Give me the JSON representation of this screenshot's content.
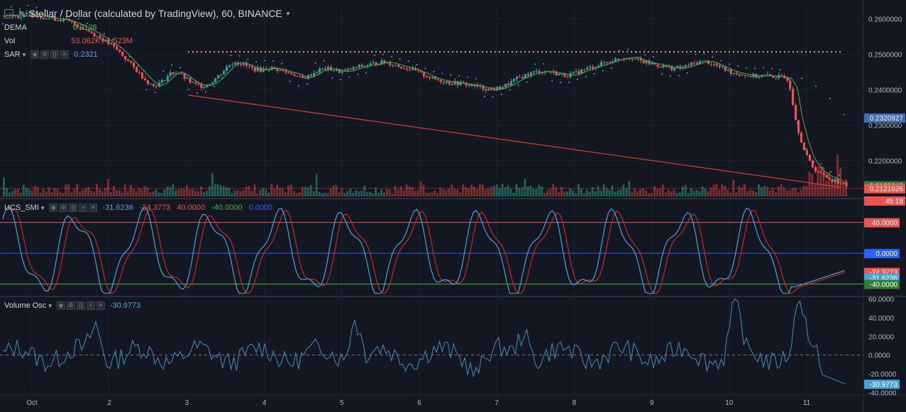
{
  "header": {
    "title": "Stellar / Dollar (calculated by TradingView), 60, BINANCE",
    "menu_caret": "▾"
  },
  "indicators": {
    "dema": {
      "name": "DEMA",
      "value": "0.2138"
    },
    "vol": {
      "name": "Vol",
      "value1": "53.062K",
      "value2": "1.523M"
    },
    "sar": {
      "name": "SAR",
      "value": "0.2321"
    },
    "smi": {
      "name": "UCS_SMI",
      "values": [
        "-31.6236",
        "-24.3773",
        "40.0000",
        "-40.0000",
        "0.0000"
      ],
      "colors": [
        "#4aa3d8",
        "#ef5350",
        "#ef5350",
        "#4caf50",
        "#2962ff"
      ]
    },
    "vosc": {
      "name": "Volume Osc",
      "value": "-30.9773"
    }
  },
  "colors": {
    "background": "#131722",
    "up": "#26a69a",
    "down": "#ef5350",
    "dema_line": "#4caf50",
    "sar_dots": "#5d9cec",
    "trendline": "#e53935",
    "resistance": "#ff9800",
    "smi_line": "#4aa3d8",
    "smi_signal": "#c62828",
    "upper_level": "#ef5350",
    "mid_level": "#2962ff",
    "lower_level": "#4caf50"
  },
  "chart_data": [
    {
      "type": "candlestick",
      "pane": "price",
      "yticks": [
        "0.2600000",
        "0.2500000",
        "0.2400000",
        "0.2300000",
        "0.2200000"
      ],
      "ylim": [
        0.2095,
        0.2645
      ],
      "xticks": [
        "Oct",
        "2",
        "3",
        "4",
        "5",
        "6",
        "7",
        "8",
        "9",
        "10",
        "11"
      ],
      "price_labels": [
        {
          "text": "0.2320927",
          "value": 0.2320927,
          "color": "#3d6eb4"
        },
        {
          "text": "0.2130043",
          "value": 0.2130043,
          "color": "#2e7d32"
        },
        {
          "text": "0.2121626",
          "value": 0.2121626,
          "color": "#ef5350"
        },
        {
          "text": "45:18",
          "value": 0.2087,
          "color": "#ef5350"
        }
      ],
      "resistance_level": 0.2507,
      "trendline": {
        "from": [
          "Oct 3",
          0.2385
        ],
        "to": [
          "Oct 11",
          0.2125
        ]
      },
      "close_series": [
        0.2608,
        0.2612,
        0.2605,
        0.2616,
        0.261,
        0.2604,
        0.26,
        0.2598,
        0.259,
        0.258,
        0.2568,
        0.2555,
        0.254,
        0.2525,
        0.2505,
        0.248,
        0.2455,
        0.243,
        0.241,
        0.242,
        0.2445,
        0.245,
        0.243,
        0.2415,
        0.241,
        0.242,
        0.244,
        0.2465,
        0.248,
        0.247,
        0.246,
        0.2455,
        0.2462,
        0.2458,
        0.245,
        0.2445,
        0.243,
        0.244,
        0.2455,
        0.246,
        0.2455,
        0.245,
        0.2458,
        0.2465,
        0.247,
        0.2475,
        0.2478,
        0.2472,
        0.2465,
        0.246,
        0.245,
        0.244,
        0.243,
        0.2425,
        0.242,
        0.2418,
        0.2415,
        0.241,
        0.2405,
        0.24,
        0.2405,
        0.2415,
        0.243,
        0.244,
        0.2448,
        0.2452,
        0.245,
        0.2445,
        0.244,
        0.2445,
        0.2455,
        0.2462,
        0.247,
        0.2478,
        0.2485,
        0.249,
        0.2492,
        0.248,
        0.2475,
        0.247,
        0.2465,
        0.246,
        0.2462,
        0.247,
        0.2478,
        0.248,
        0.247,
        0.246,
        0.245,
        0.2445,
        0.244,
        0.2438,
        0.244,
        0.2438,
        0.2435,
        0.243,
        0.23,
        0.222,
        0.218,
        0.216,
        0.215,
        0.214,
        0.213
      ],
      "sar_value": 0.2320927
    },
    {
      "type": "bar",
      "pane": "volume",
      "note_series": "volume bars along bottom of price pane"
    },
    {
      "type": "line",
      "pane": "smi",
      "yticks": [
        "40.0000",
        "0.0000",
        "-24.3773",
        "-31.6236",
        "-40.0000"
      ],
      "ylim": [
        -55,
        70
      ],
      "levels": [
        40,
        0,
        -40
      ],
      "last": {
        "smi": -31.6236,
        "signal": -24.3773
      }
    },
    {
      "type": "line",
      "pane": "volume_osc",
      "yticks": [
        "60.0000",
        "40.0000",
        "20.0000",
        "0.0000",
        "-20.0000",
        "-30.9773",
        "-40.0000"
      ],
      "ylim": [
        -42,
        62
      ],
      "last": -30.9773
    }
  ]
}
